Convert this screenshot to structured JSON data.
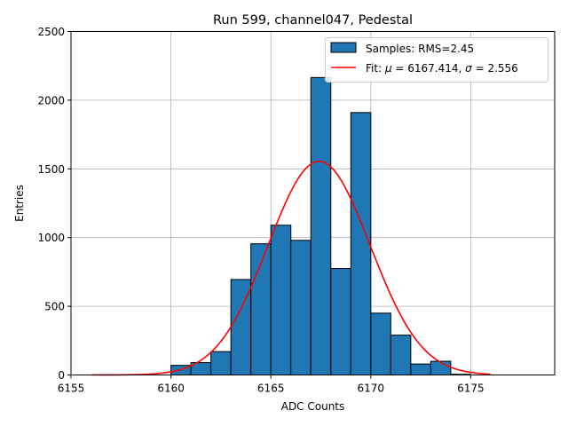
{
  "chart_data": {
    "type": "bar",
    "title": "Run 599, channel047, Pedestal",
    "xlabel": "ADC Counts",
    "ylabel": "Entries",
    "xlim": [
      6155,
      6179.2
    ],
    "ylim": [
      0,
      2500
    ],
    "xticks": [
      6155,
      6160,
      6165,
      6170,
      6175
    ],
    "yticks": [
      0,
      500,
      1000,
      1500,
      2000,
      2500
    ],
    "grid": true,
    "legend_position": "top-right",
    "histogram": {
      "name": "Samples: RMS=2.45",
      "color": "#1f77b4",
      "edgecolor": "#000000",
      "bins": [
        {
          "x0": 6160,
          "x1": 6161,
          "count": 70
        },
        {
          "x0": 6161,
          "x1": 6162,
          "count": 90
        },
        {
          "x0": 6162,
          "x1": 6163,
          "count": 170
        },
        {
          "x0": 6163,
          "x1": 6164,
          "count": 695
        },
        {
          "x0": 6164,
          "x1": 6165,
          "count": 955
        },
        {
          "x0": 6165,
          "x1": 6166,
          "count": 1090
        },
        {
          "x0": 6166,
          "x1": 6167,
          "count": 980
        },
        {
          "x0": 6167,
          "x1": 6168,
          "count": 2165
        },
        {
          "x0": 6168,
          "x1": 6169,
          "count": 775
        },
        {
          "x0": 6169,
          "x1": 6170,
          "count": 1910
        },
        {
          "x0": 6170,
          "x1": 6171,
          "count": 450
        },
        {
          "x0": 6171,
          "x1": 6172,
          "count": 290
        },
        {
          "x0": 6172,
          "x1": 6173,
          "count": 80
        },
        {
          "x0": 6173,
          "x1": 6174,
          "count": 100
        },
        {
          "x0": 6174,
          "x1": 6175,
          "count": 5
        }
      ]
    },
    "fit": {
      "label": "Fit: μ = 6167.414, σ = 2.556",
      "label_prefix": "Fit: ",
      "label_mu": "μ",
      "label_mid": " = 6167.414, ",
      "label_sigma": "σ",
      "label_suffix": " = 2.556",
      "color": "#ff0000",
      "mu": 6167.414,
      "sigma": 2.556,
      "amplitude": 1555,
      "x_range": [
        6156,
        6176
      ]
    }
  }
}
